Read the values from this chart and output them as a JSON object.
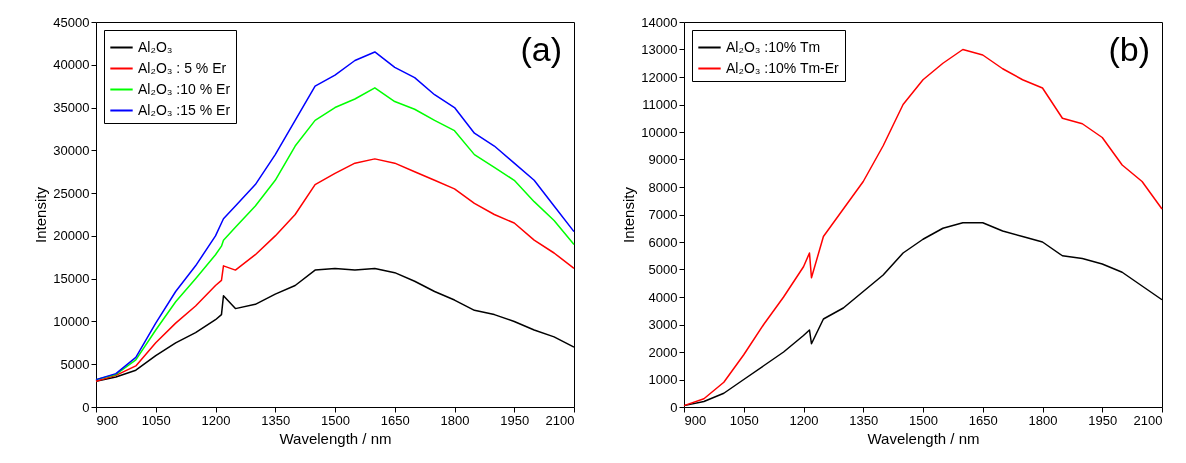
{
  "chart_data": [
    {
      "type": "line",
      "annotations": [
        "(a)"
      ],
      "xlabel": "Wavelength / nm",
      "ylabel": "Intensity",
      "x": [
        900,
        950,
        1000,
        1050,
        1100,
        1150,
        1200,
        1215,
        1220,
        1250,
        1300,
        1350,
        1400,
        1450,
        1500,
        1550,
        1600,
        1650,
        1700,
        1750,
        1800,
        1850,
        1900,
        1950,
        2000,
        2050,
        2100
      ],
      "series": [
        {
          "name": "Al₂O₃",
          "color": "#000000",
          "values": [
            3000,
            3500,
            4300,
            6000,
            7500,
            8700,
            10200,
            10800,
            13000,
            11500,
            12000,
            13200,
            14200,
            16000,
            16200,
            16000,
            16200,
            15700,
            14700,
            13500,
            12500,
            11300,
            10800,
            10000,
            9000,
            8200,
            7000
          ]
        },
        {
          "name": "Al₂O₃ : 5 % Er",
          "color": "#ff0000",
          "values": [
            3000,
            3700,
            4800,
            7500,
            9800,
            11800,
            14200,
            14800,
            16500,
            16000,
            17800,
            20000,
            22500,
            26000,
            27300,
            28500,
            29000,
            28500,
            27500,
            26500,
            25500,
            23800,
            22500,
            21500,
            19500,
            18000,
            16200
          ]
        },
        {
          "name": "Al₂O₃ :10 % Er",
          "color": "#00ff00",
          "values": [
            3200,
            3800,
            5500,
            9000,
            12300,
            15000,
            17800,
            18800,
            19500,
            21000,
            23500,
            26500,
            30500,
            33500,
            35000,
            36000,
            37300,
            35700,
            34800,
            33500,
            32300,
            29500,
            28000,
            26500,
            24000,
            21800,
            19000
          ]
        },
        {
          "name": "Al₂O₃ :15 % Er",
          "color": "#0000ff",
          "values": [
            3200,
            3900,
            5800,
            9800,
            13500,
            16500,
            20000,
            21500,
            22000,
            23500,
            26000,
            29500,
            33500,
            37500,
            38800,
            40500,
            41500,
            39700,
            38500,
            36500,
            35000,
            32000,
            30500,
            28500,
            26500,
            23500,
            20500
          ]
        }
      ],
      "xlim": [
        900,
        2100
      ],
      "xticks": [
        900,
        1050,
        1200,
        1350,
        1500,
        1650,
        1800,
        1950,
        2100
      ],
      "ylim": [
        0,
        45000
      ],
      "yticks": [
        0,
        5000,
        10000,
        15000,
        20000,
        25000,
        30000,
        35000,
        40000,
        45000
      ],
      "legend": "top left"
    },
    {
      "type": "line",
      "annotations": [
        "(b)"
      ],
      "xlabel": "Wavelength / nm",
      "ylabel": "Intensity",
      "x": [
        900,
        950,
        1000,
        1050,
        1100,
        1150,
        1200,
        1215,
        1220,
        1250,
        1300,
        1350,
        1400,
        1450,
        1500,
        1550,
        1600,
        1650,
        1700,
        1750,
        1800,
        1850,
        1900,
        1950,
        2000,
        2050,
        2100
      ],
      "series": [
        {
          "name": "Al₂O₃ :10% Tm",
          "color": "#000000",
          "values": [
            50,
            200,
            500,
            1000,
            1500,
            2000,
            2600,
            2800,
            2300,
            3200,
            3600,
            4200,
            4800,
            5600,
            6100,
            6500,
            6700,
            6700,
            6400,
            6200,
            6000,
            5500,
            5400,
            5200,
            4900,
            4400,
            3900
          ]
        },
        {
          "name": "Al₂O₃ :10% Tm-Er",
          "color": "#ff0000",
          "values": [
            50,
            300,
            900,
            1900,
            3000,
            4000,
            5100,
            5600,
            4700,
            6200,
            7200,
            8200,
            9500,
            11000,
            11900,
            12500,
            13000,
            12800,
            12300,
            11900,
            11600,
            10500,
            10300,
            9800,
            8800,
            8200,
            7200
          ]
        }
      ],
      "xlim": [
        900,
        2100
      ],
      "xticks": [
        900,
        1050,
        1200,
        1350,
        1500,
        1650,
        1800,
        1950,
        2100
      ],
      "ylim": [
        0,
        14000
      ],
      "yticks": [
        0,
        1000,
        2000,
        3000,
        4000,
        5000,
        6000,
        7000,
        8000,
        9000,
        10000,
        11000,
        12000,
        13000,
        14000
      ],
      "legend": "top left"
    }
  ]
}
